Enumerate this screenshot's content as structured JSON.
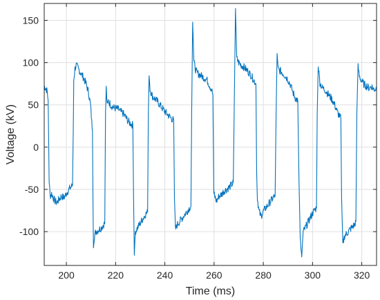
{
  "chart_data": {
    "type": "line",
    "xlabel": "Time (ms)",
    "ylabel": "Voltage (kV)",
    "xlim": [
      191,
      326
    ],
    "ylim": [
      -140,
      170
    ],
    "x_ticks": [
      200,
      220,
      240,
      260,
      280,
      300,
      320
    ],
    "y_ticks": [
      -100,
      -50,
      0,
      50,
      100,
      150
    ],
    "grid": true,
    "line_color": "#0072BD",
    "series": [
      {
        "values_note": "",
        "points": [
          [
            191.0,
            72
          ],
          [
            191.6,
            70
          ],
          [
            192.2,
            66
          ],
          [
            192.6,
            55
          ],
          [
            192.8,
            10
          ],
          [
            193.0,
            -40
          ],
          [
            193.4,
            -58
          ],
          [
            194.0,
            -55
          ],
          [
            195.0,
            -62
          ],
          [
            196.0,
            -66
          ],
          [
            197.0,
            -62
          ],
          [
            198.0,
            -58
          ],
          [
            199.0,
            -60
          ],
          [
            200.0,
            -55
          ],
          [
            201.0,
            -50
          ],
          [
            202.0,
            -47
          ],
          [
            202.5,
            -45
          ],
          [
            202.8,
            20
          ],
          [
            203.0,
            80
          ],
          [
            203.5,
            93
          ],
          [
            204.0,
            97
          ],
          [
            205.0,
            92
          ],
          [
            206.0,
            87
          ],
          [
            207.0,
            82
          ],
          [
            208.0,
            75
          ],
          [
            209.0,
            65
          ],
          [
            209.8,
            50
          ],
          [
            210.3,
            30
          ],
          [
            210.6,
            20
          ],
          [
            210.8,
            -60
          ],
          [
            211.0,
            -115
          ],
          [
            211.4,
            -105
          ],
          [
            212.0,
            -100
          ],
          [
            213.0,
            -98
          ],
          [
            214.0,
            -96
          ],
          [
            215.0,
            -92
          ],
          [
            215.6,
            -90
          ],
          [
            215.9,
            40
          ],
          [
            216.2,
            70
          ],
          [
            216.6,
            48
          ],
          [
            217.0,
            55
          ],
          [
            218.0,
            50
          ],
          [
            219.0,
            47
          ],
          [
            220.0,
            46
          ],
          [
            221.0,
            45
          ],
          [
            222.0,
            42
          ],
          [
            223.0,
            40
          ],
          [
            224.0,
            36
          ],
          [
            225.0,
            31
          ],
          [
            226.0,
            28
          ],
          [
            227.0,
            26
          ],
          [
            227.3,
            -60
          ],
          [
            227.6,
            -128
          ],
          [
            228.0,
            -100
          ],
          [
            229.0,
            -95
          ],
          [
            230.0,
            -90
          ],
          [
            231.0,
            -85
          ],
          [
            232.0,
            -80
          ],
          [
            233.0,
            -77
          ],
          [
            233.3,
            40
          ],
          [
            233.6,
            88
          ],
          [
            234.0,
            68
          ],
          [
            235.0,
            60
          ],
          [
            236.0,
            57
          ],
          [
            237.0,
            54
          ],
          [
            238.0,
            50
          ],
          [
            239.0,
            46
          ],
          [
            240.0,
            42
          ],
          [
            241.0,
            39
          ],
          [
            242.0,
            36
          ],
          [
            243.0,
            33
          ],
          [
            243.6,
            32
          ],
          [
            243.9,
            -60
          ],
          [
            244.3,
            -98
          ],
          [
            245.0,
            -92
          ],
          [
            246.0,
            -88
          ],
          [
            247.0,
            -84
          ],
          [
            248.0,
            -80
          ],
          [
            249.0,
            -76
          ],
          [
            250.0,
            -72
          ],
          [
            250.6,
            -70
          ],
          [
            250.9,
            40
          ],
          [
            251.3,
            148
          ],
          [
            251.8,
            100
          ],
          [
            252.5,
            92
          ],
          [
            253.0,
            88
          ],
          [
            254.0,
            86
          ],
          [
            255.0,
            84
          ],
          [
            256.0,
            82
          ],
          [
            257.0,
            80
          ],
          [
            258.0,
            74
          ],
          [
            259.0,
            68
          ],
          [
            259.5,
            62
          ],
          [
            259.9,
            -55
          ],
          [
            260.5,
            -60
          ],
          [
            261.0,
            -64
          ],
          [
            262.0,
            -58
          ],
          [
            263.0,
            -56
          ],
          [
            264.0,
            -52
          ],
          [
            265.0,
            -50
          ],
          [
            266.0,
            -48
          ],
          [
            267.0,
            -45
          ],
          [
            267.8,
            -42
          ],
          [
            268.2,
            50
          ],
          [
            268.7,
            164
          ],
          [
            269.2,
            105
          ],
          [
            270.0,
            100
          ],
          [
            271.0,
            97
          ],
          [
            272.0,
            95
          ],
          [
            273.0,
            92
          ],
          [
            274.0,
            89
          ],
          [
            275.0,
            85
          ],
          [
            276.0,
            80
          ],
          [
            277.0,
            75
          ],
          [
            277.3,
            -30
          ],
          [
            277.6,
            -60
          ],
          [
            278.2,
            -75
          ],
          [
            279.0,
            -82
          ],
          [
            280.0,
            -76
          ],
          [
            281.0,
            -72
          ],
          [
            282.0,
            -68
          ],
          [
            283.0,
            -64
          ],
          [
            284.0,
            -60
          ],
          [
            284.8,
            -57
          ],
          [
            285.2,
            40
          ],
          [
            285.6,
            108
          ],
          [
            286.0,
            92
          ],
          [
            287.0,
            90
          ],
          [
            288.0,
            87
          ],
          [
            289.0,
            84
          ],
          [
            290.0,
            80
          ],
          [
            291.0,
            74
          ],
          [
            292.0,
            65
          ],
          [
            293.0,
            58
          ],
          [
            294.0,
            55
          ],
          [
            294.5,
            -40
          ],
          [
            295.0,
            -110
          ],
          [
            295.6,
            -130
          ],
          [
            296.2,
            -100
          ],
          [
            297.0,
            -96
          ],
          [
            298.0,
            -90
          ],
          [
            299.0,
            -84
          ],
          [
            300.0,
            -78
          ],
          [
            301.0,
            -74
          ],
          [
            301.6,
            -72
          ],
          [
            301.9,
            40
          ],
          [
            302.3,
            98
          ],
          [
            303.0,
            76
          ],
          [
            304.0,
            70
          ],
          [
            305.0,
            68
          ],
          [
            306.0,
            64
          ],
          [
            307.0,
            60
          ],
          [
            308.0,
            56
          ],
          [
            309.0,
            50
          ],
          [
            310.0,
            42
          ],
          [
            311.0,
            36
          ],
          [
            311.5,
            34
          ],
          [
            311.8,
            -60
          ],
          [
            312.3,
            -115
          ],
          [
            313.0,
            -105
          ],
          [
            314.0,
            -102
          ],
          [
            315.0,
            -98
          ],
          [
            316.0,
            -95
          ],
          [
            317.0,
            -92
          ],
          [
            317.6,
            -88
          ],
          [
            318.0,
            40
          ],
          [
            318.5,
            95
          ],
          [
            319.0,
            84
          ],
          [
            320.0,
            78
          ],
          [
            321.0,
            74
          ],
          [
            322.0,
            72
          ],
          [
            323.0,
            70
          ],
          [
            324.0,
            72
          ],
          [
            325.0,
            68
          ],
          [
            326.0,
            70
          ]
        ]
      }
    ]
  }
}
